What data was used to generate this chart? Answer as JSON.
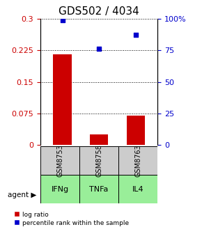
{
  "title": "GDS502 / 4034",
  "samples": [
    "GSM8753",
    "GSM8758",
    "GSM8763"
  ],
  "agents": [
    "IFNg",
    "TNFa",
    "IL4"
  ],
  "log_ratios": [
    0.215,
    0.025,
    0.07
  ],
  "percentile_ranks": [
    99,
    76,
    87
  ],
  "left_ylim": [
    0,
    0.3
  ],
  "right_ylim": [
    0,
    100
  ],
  "left_yticks": [
    0,
    0.075,
    0.15,
    0.225,
    0.3
  ],
  "left_yticklabels": [
    "0",
    "0.075",
    "0.15",
    "0.225",
    "0.3"
  ],
  "right_yticks": [
    0,
    25,
    50,
    75,
    100
  ],
  "right_yticklabels": [
    "0",
    "25",
    "50",
    "75",
    "100%"
  ],
  "bar_color": "#cc0000",
  "scatter_color": "#0000cc",
  "gray_bg": "#cccccc",
  "green_bg": "#99ee99",
  "agent_row_label": "agent ▶",
  "legend_log": "log ratio",
  "legend_pct": "percentile rank within the sample",
  "title_fontsize": 11,
  "tick_fontsize": 8,
  "label_fontsize": 8,
  "bar_width": 0.5
}
